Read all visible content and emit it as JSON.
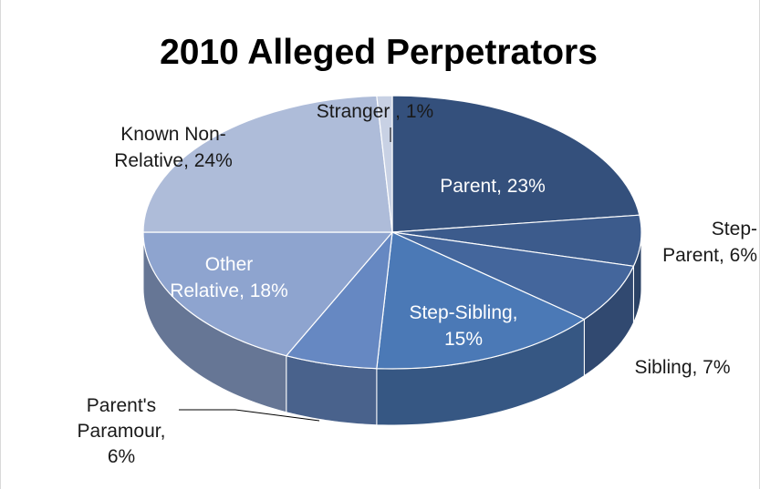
{
  "chart_data": {
    "type": "pie",
    "title": "2010 Alleged Perpetrators",
    "style": "3d-pie",
    "slices": [
      {
        "label": "Parent, 23%",
        "category": "Parent",
        "value": 23,
        "color": "#34507c",
        "label_color": "light"
      },
      {
        "label": "Step-Parent, 6%",
        "category": "Step-Parent",
        "value": 6,
        "color": "#3c5b8c",
        "label_color": "dark"
      },
      {
        "label": "Sibling, 7%",
        "category": "Sibling",
        "value": 7,
        "color": "#44669c",
        "label_color": "dark"
      },
      {
        "label": "Step-Sibling, 15%",
        "category": "Step-Sibling",
        "value": 15,
        "color": "#4b79b6",
        "label_color": "light"
      },
      {
        "label": "Parent's Paramour, 6%",
        "category": "Parent's Paramour",
        "value": 6,
        "color": "#6688c2",
        "label_color": "dark"
      },
      {
        "label": "Other Relative, 18%",
        "category": "Other Relative",
        "value": 18,
        "color": "#8ea4cf",
        "label_color": "light"
      },
      {
        "label": "Known Non-Relative, 24%",
        "category": "Known Non-Relative",
        "value": 24,
        "color": "#aebcd9",
        "label_color": "dark"
      },
      {
        "label": "Stranger , 1%",
        "category": "Stranger",
        "value": 1,
        "color": "#c8d1e4",
        "label_color": "dark"
      }
    ]
  }
}
